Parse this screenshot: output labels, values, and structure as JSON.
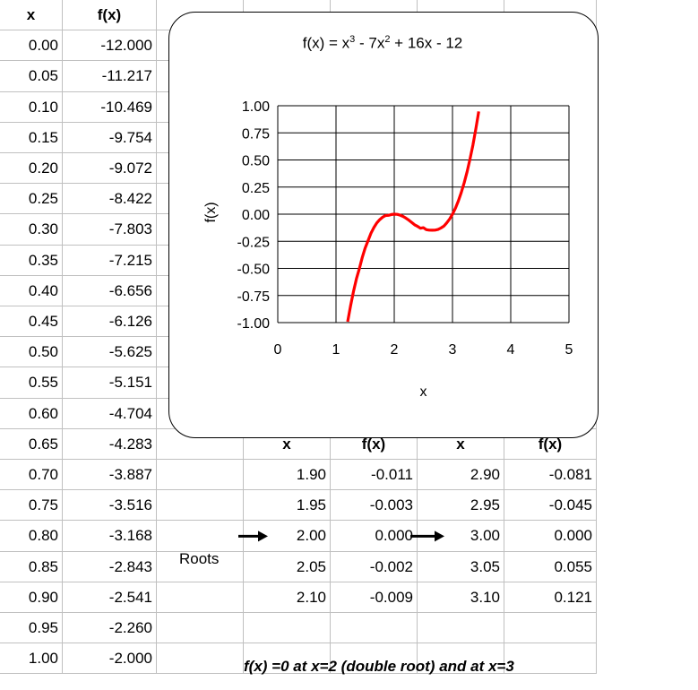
{
  "main_table": {
    "headers": [
      "x",
      "f(x)"
    ],
    "rows": [
      [
        "0.00",
        "-12.000"
      ],
      [
        "0.05",
        "-11.217"
      ],
      [
        "0.10",
        "-10.469"
      ],
      [
        "0.15",
        "-9.754"
      ],
      [
        "0.20",
        "-9.072"
      ],
      [
        "0.25",
        "-8.422"
      ],
      [
        "0.30",
        "-7.803"
      ],
      [
        "0.35",
        "-7.215"
      ],
      [
        "0.40",
        "-6.656"
      ],
      [
        "0.45",
        "-6.126"
      ],
      [
        "0.50",
        "-5.625"
      ],
      [
        "0.55",
        "-5.151"
      ],
      [
        "0.60",
        "-4.704"
      ],
      [
        "0.65",
        "-4.283"
      ],
      [
        "0.70",
        "-3.887"
      ],
      [
        "0.75",
        "-3.516"
      ],
      [
        "0.80",
        "-3.168"
      ],
      [
        "0.85",
        "-2.843"
      ],
      [
        "0.90",
        "-2.541"
      ],
      [
        "0.95",
        "-2.260"
      ],
      [
        "1.00",
        "-2.000"
      ]
    ]
  },
  "roots_table": {
    "headers": [
      "x",
      "f(x)",
      "x",
      "f(x)"
    ],
    "rows": [
      [
        "1.90",
        "-0.011",
        "2.90",
        "-0.081"
      ],
      [
        "1.95",
        "-0.003",
        "2.95",
        "-0.045"
      ],
      [
        "2.00",
        "0.000",
        "3.00",
        "0.000"
      ],
      [
        "2.05",
        "-0.002",
        "3.05",
        "0.055"
      ],
      [
        "2.10",
        "-0.009",
        "3.10",
        "0.121"
      ]
    ],
    "roots_label": "Roots",
    "note": "f(x) =0 at x=2 (double root) and at x=3"
  },
  "chart_data": {
    "type": "line",
    "title_parts": [
      "f(x) = x",
      "3",
      " - 7x",
      "2",
      " + 16x - 12"
    ],
    "xlabel": "x",
    "ylabel": "f(x)",
    "xlim": [
      0,
      5
    ],
    "ylim": [
      -1,
      1
    ],
    "xticks": [
      "0",
      "1",
      "2",
      "3",
      "4",
      "5"
    ],
    "yticks": [
      "1.00",
      "0.75",
      "0.50",
      "0.25",
      "0.00",
      "-0.25",
      "-0.50",
      "-0.75",
      "-1.00"
    ],
    "grid": true,
    "series": [
      {
        "color": "#ff0000",
        "x": [
          1.2,
          1.25,
          1.3,
          1.35,
          1.4,
          1.45,
          1.5,
          1.55,
          1.6,
          1.65,
          1.7,
          1.75,
          1.8,
          1.85,
          1.9,
          1.95,
          2.0,
          2.05,
          2.1,
          2.15,
          2.2,
          2.25,
          2.3,
          2.35,
          2.4,
          2.45,
          2.5,
          2.55,
          2.6,
          2.65,
          2.7,
          2.75,
          2.8,
          2.85,
          2.9,
          2.95,
          3.0,
          3.05,
          3.1,
          3.15,
          3.2,
          3.25,
          3.3,
          3.35,
          3.4,
          3.45
        ],
        "y": [
          -0.992,
          -0.844,
          -0.713,
          -0.596,
          -0.504,
          -0.399,
          -0.313,
          -0.244,
          -0.176,
          -0.123,
          -0.081,
          -0.05,
          -0.028,
          -0.012,
          -0.011,
          -0.003,
          0.0,
          -0.002,
          -0.009,
          -0.021,
          -0.036,
          -0.055,
          -0.076,
          -0.098,
          -0.112,
          -0.13,
          -0.125,
          -0.143,
          -0.147,
          -0.148,
          -0.147,
          -0.141,
          -0.128,
          -0.111,
          -0.081,
          -0.045,
          0.0,
          0.055,
          0.121,
          0.2,
          0.288,
          0.391,
          0.507,
          0.637,
          0.784,
          0.947
        ]
      }
    ]
  }
}
